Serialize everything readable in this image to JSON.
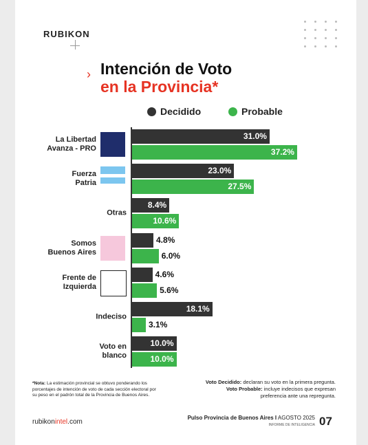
{
  "header": {
    "brand": "RUBIKON"
  },
  "chart_data": {
    "type": "bar",
    "orientation": "horizontal",
    "title": "Intención de Voto",
    "subtitle": "en la Provincia*",
    "categories": [
      "La Libertad\nAvanza - PRO",
      "Fuerza\nPatria",
      "Otras",
      "Somos\nBuenos Aires",
      "Frente de\nIzquierda",
      "Indeciso",
      "Voto en\nblanco"
    ],
    "series": [
      {
        "name": "Decidido",
        "color": "#333333",
        "values": [
          31.0,
          23.0,
          8.4,
          4.8,
          4.6,
          18.1,
          10.0
        ],
        "value_labels": [
          "31.0%",
          "23.0%",
          "8.4%",
          "4.8%",
          "4.6%",
          "18.1%",
          "10.0%"
        ]
      },
      {
        "name": "Probable",
        "color": "#3cb44b",
        "values": [
          37.2,
          27.5,
          10.6,
          6.0,
          5.6,
          3.1,
          10.0
        ],
        "value_labels": [
          "37.2%",
          "27.5%",
          "10.6%",
          "6.0%",
          "5.6%",
          "3.1%",
          "10.0%"
        ]
      }
    ]
  },
  "notes": {
    "method": {
      "label": "*Nota:",
      "text": "La estimación provincial se obtuvo ponderando los porcentajes de intención de voto de cada sección electoral por su peso en el padrón total de la Provincia de Buenos Aires."
    },
    "decidido": {
      "label": "Voto Decidido:",
      "text": "declaran su voto en la primera pregunta."
    },
    "probable": {
      "label": "Voto Probable:",
      "text": "incluye indecisos que expresan preferencia ante una repregunta."
    }
  },
  "footer": {
    "site_a": "rubikon",
    "site_b": "intel",
    "site_c": ".com",
    "report": "Pulso Provincia de Buenos Aires I",
    "date": "AGOSTO 2025",
    "series_name": "INFORME DE INTELIGENCIA",
    "page": "07"
  }
}
